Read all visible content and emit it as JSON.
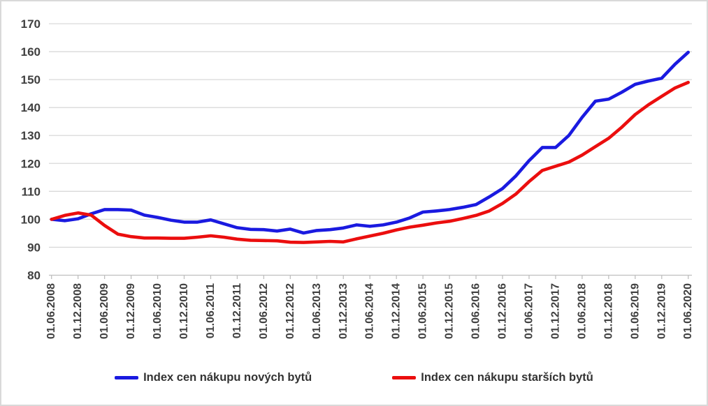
{
  "chart_data": {
    "type": "line",
    "title": "",
    "xlabel": "",
    "ylabel": "",
    "ylim": [
      80,
      170
    ],
    "y_tick_step": 10,
    "grid": true,
    "legend_position": "bottom",
    "x_tick_labels": [
      "01.06.2008",
      "01.12.2008",
      "01.06.2009",
      "01.12.2009",
      "01.06.2010",
      "01.12.2010",
      "01.06.2011",
      "01.12.2011",
      "01.06.2012",
      "01.12.2012",
      "01.06.2013",
      "01.12.2013",
      "01.06.2014",
      "01.12.2014",
      "01.06.2015",
      "01.12.2015",
      "01.06.2016",
      "01.12.2016",
      "01.06.2017",
      "01.12.2017",
      "01.06.2018",
      "01.12.2018",
      "01.06.2019",
      "01.12.2019",
      "01.06.2020"
    ],
    "x": [
      "01.06.2008",
      "01.09.2008",
      "01.12.2008",
      "01.03.2009",
      "01.06.2009",
      "01.09.2009",
      "01.12.2009",
      "01.03.2010",
      "01.06.2010",
      "01.09.2010",
      "01.12.2010",
      "01.03.2011",
      "01.06.2011",
      "01.09.2011",
      "01.12.2011",
      "01.03.2012",
      "01.06.2012",
      "01.09.2012",
      "01.12.2012",
      "01.03.2013",
      "01.06.2013",
      "01.09.2013",
      "01.12.2013",
      "01.03.2014",
      "01.06.2014",
      "01.09.2014",
      "01.12.2014",
      "01.03.2015",
      "01.06.2015",
      "01.09.2015",
      "01.12.2015",
      "01.03.2016",
      "01.06.2016",
      "01.09.2016",
      "01.12.2016",
      "01.03.2017",
      "01.06.2017",
      "01.09.2017",
      "01.12.2017",
      "01.03.2018",
      "01.06.2018",
      "01.09.2018",
      "01.12.2018",
      "01.03.2019",
      "01.06.2019",
      "01.09.2019",
      "01.12.2019",
      "01.03.2020",
      "01.06.2020"
    ],
    "series": [
      {
        "name": "Index cen nákupu nových bytů",
        "color": "#1a1ae0",
        "values": [
          100,
          99.5,
          100.2,
          102,
          103.5,
          103.5,
          103.3,
          101.5,
          100.7,
          99.7,
          99,
          99,
          99.8,
          98.4,
          97,
          96.4,
          96.3,
          95.8,
          96.5,
          95.1,
          96,
          96.3,
          96.9,
          98,
          97.5,
          98,
          99,
          100.5,
          102.6,
          103,
          103.5,
          104.3,
          105.3,
          108,
          111,
          115.5,
          121,
          125.7,
          125.7,
          130,
          136.5,
          142.3,
          143,
          145.5,
          148.3,
          149.5,
          150.5,
          155.5,
          159.8
        ]
      },
      {
        "name": "Index cen nákupu starších bytů",
        "color": "#eb0e0e",
        "values": [
          100,
          101.4,
          102.3,
          101.5,
          97.8,
          94.7,
          93.8,
          93.3,
          93.3,
          93.2,
          93.2,
          93.6,
          94.1,
          93.6,
          92.9,
          92.5,
          92.4,
          92.3,
          91.8,
          91.7,
          91.9,
          92.1,
          91.9,
          93,
          94,
          95,
          96.2,
          97.2,
          97.9,
          98.7,
          99.3,
          100.3,
          101.4,
          103,
          105.7,
          109,
          113.5,
          117.5,
          119,
          120.5,
          123,
          126,
          129,
          133,
          137.5,
          141,
          144,
          147,
          149
        ]
      }
    ],
    "colors": {
      "gridline": "#d9d9d9",
      "axis_line": "#bfbfbf",
      "tick_label": "#404040",
      "legend_text": "#333333",
      "frame_border": "#d9d9d9",
      "background": "#ffffff"
    }
  },
  "legend": {
    "items": [
      {
        "label": "Index cen nákupu nových bytů"
      },
      {
        "label": "Index cen nákupu starších bytů"
      }
    ]
  }
}
